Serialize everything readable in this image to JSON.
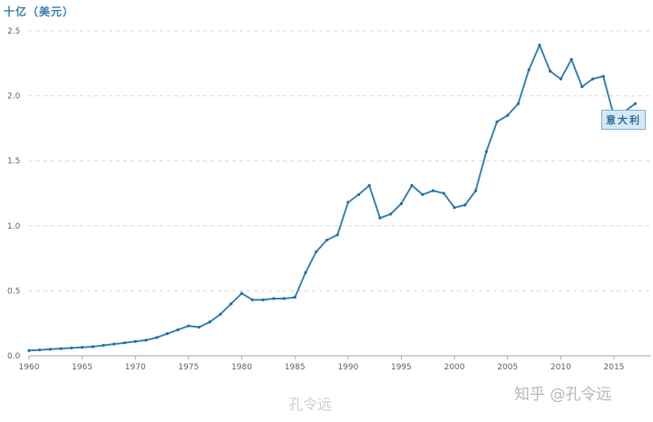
{
  "chart_data": {
    "type": "line",
    "title": "",
    "ylabel": "十亿（美元）",
    "xlabel": "",
    "xlim": [
      1960,
      2018.5
    ],
    "ylim": [
      0,
      2.5
    ],
    "x_ticks": [
      1960,
      1965,
      1970,
      1975,
      1980,
      1985,
      1990,
      1995,
      2000,
      2005,
      2010,
      2015
    ],
    "y_ticks": [
      0.0,
      0.5,
      1.0,
      1.5,
      2.0,
      2.5
    ],
    "y_tick_labels": [
      "0.0",
      "0.5",
      "1.0",
      "1.5",
      "2.0",
      "2.5"
    ],
    "grid": true,
    "series": [
      {
        "name": "意大利",
        "color": "#3a86b5",
        "points": [
          [
            1960,
            0.04
          ],
          [
            1961,
            0.045
          ],
          [
            1962,
            0.05
          ],
          [
            1963,
            0.055
          ],
          [
            1964,
            0.06
          ],
          [
            1965,
            0.065
          ],
          [
            1966,
            0.07
          ],
          [
            1967,
            0.08
          ],
          [
            1968,
            0.09
          ],
          [
            1969,
            0.1
          ],
          [
            1970,
            0.11
          ],
          [
            1971,
            0.12
          ],
          [
            1972,
            0.14
          ],
          [
            1973,
            0.17
          ],
          [
            1974,
            0.2
          ],
          [
            1975,
            0.23
          ],
          [
            1976,
            0.22
          ],
          [
            1977,
            0.26
          ],
          [
            1978,
            0.32
          ],
          [
            1979,
            0.4
          ],
          [
            1980,
            0.48
          ],
          [
            1981,
            0.43
          ],
          [
            1982,
            0.43
          ],
          [
            1983,
            0.44
          ],
          [
            1984,
            0.44
          ],
          [
            1985,
            0.45
          ],
          [
            1986,
            0.64
          ],
          [
            1987,
            0.8
          ],
          [
            1988,
            0.89
          ],
          [
            1989,
            0.93
          ],
          [
            1990,
            1.18
          ],
          [
            1991,
            1.24
          ],
          [
            1992,
            1.31
          ],
          [
            1993,
            1.06
          ],
          [
            1994,
            1.09
          ],
          [
            1995,
            1.17
          ],
          [
            1996,
            1.31
          ],
          [
            1997,
            1.24
          ],
          [
            1998,
            1.27
          ],
          [
            1999,
            1.25
          ],
          [
            2000,
            1.14
          ],
          [
            2001,
            1.16
          ],
          [
            2002,
            1.27
          ],
          [
            2003,
            1.57
          ],
          [
            2004,
            1.8
          ],
          [
            2005,
            1.85
          ],
          [
            2006,
            1.94
          ],
          [
            2007,
            2.2
          ],
          [
            2008,
            2.39
          ],
          [
            2009,
            2.19
          ],
          [
            2010,
            2.13
          ],
          [
            2011,
            2.28
          ],
          [
            2012,
            2.07
          ],
          [
            2013,
            2.13
          ],
          [
            2014,
            2.15
          ],
          [
            2015,
            1.84
          ],
          [
            2016,
            1.88
          ],
          [
            2017,
            1.94
          ]
        ]
      }
    ]
  },
  "watermarks": {
    "zhihu": "知乎 @孔令远",
    "weibo": "孔令远"
  }
}
